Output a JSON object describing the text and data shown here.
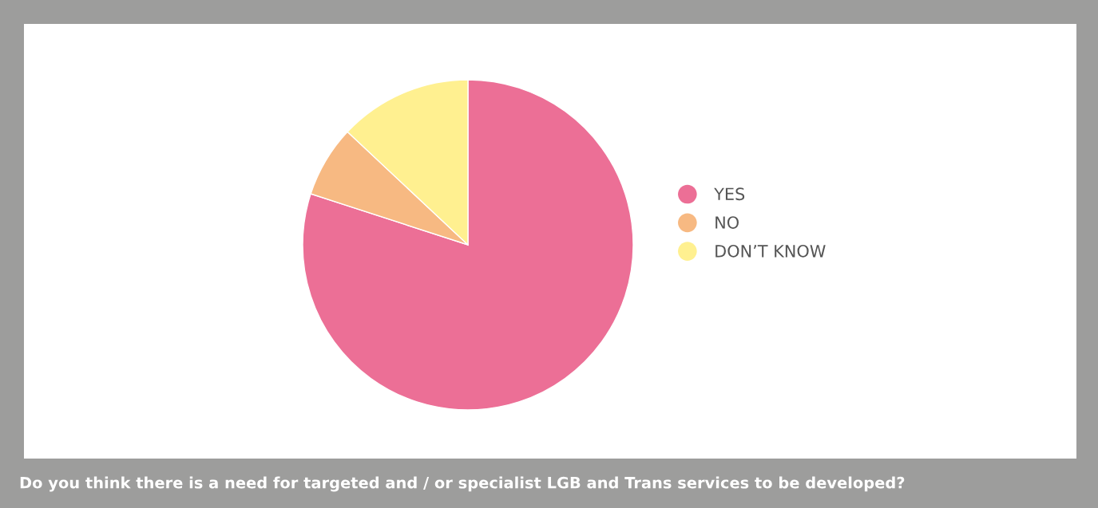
{
  "chart_data": {
    "type": "pie",
    "title": "Do you think there is a need for targeted and / or specialist LGB and Trans services to be developed?",
    "categories": [
      "YES",
      "NO",
      "DON’T KNOW"
    ],
    "values": [
      80,
      7,
      13
    ],
    "colors": [
      "#ec6f96",
      "#f7b982",
      "#fff090"
    ],
    "legend": "right"
  }
}
